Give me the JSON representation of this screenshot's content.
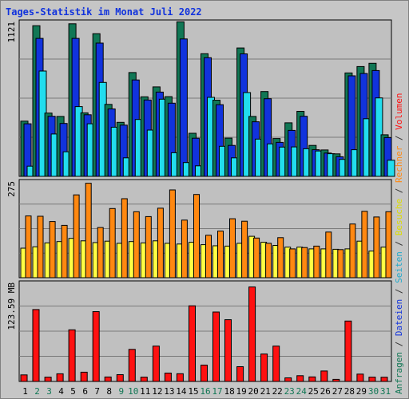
{
  "chart_data": {
    "type": "bar",
    "title": "Tages-Statistik im Monat Juli 2022",
    "categories": [
      "1",
      "2",
      "3",
      "4",
      "5",
      "6",
      "7",
      "8",
      "9",
      "10",
      "11",
      "12",
      "13",
      "14",
      "15",
      "16",
      "17",
      "18",
      "19",
      "20",
      "21",
      "22",
      "23",
      "24",
      "25",
      "26",
      "27",
      "28",
      "29",
      "30",
      "31"
    ],
    "weekend_days": [
      "2",
      "3",
      "9",
      "10",
      "16",
      "17",
      "23",
      "24",
      "30",
      "31"
    ],
    "panels": [
      {
        "name": "top",
        "max_label": "1121",
        "max": 1121,
        "series": [
          {
            "name": "Anfragen",
            "color": "#117755",
            "values": [
              400,
              1091,
              458,
              434,
              1105,
              460,
              1033,
              521,
              391,
              752,
              576,
              648,
              577,
              1119,
              312,
              888,
              552,
              277,
              930,
              434,
              614,
              274,
              388,
              471,
              224,
              191,
              163,
              749,
              795,
              819,
              301
            ]
          },
          {
            "name": "Dateien",
            "color": "#1133dd",
            "values": [
              381,
              999,
              435,
              383,
              999,
              446,
              965,
              488,
              371,
              698,
              553,
              610,
              530,
              995,
              276,
              859,
              519,
              224,
              887,
              395,
              562,
              246,
              333,
              435,
              193,
              169,
              142,
              728,
              745,
              766,
              281
            ]
          },
          {
            "name": "Seiten",
            "color": "#22ddee",
            "values": [
              74,
              763,
              307,
              178,
              505,
              381,
              680,
              356,
              134,
              412,
              335,
              559,
              171,
              100,
              76,
              572,
              218,
              134,
              607,
              270,
              235,
              212,
              213,
              200,
              184,
              164,
              123,
              193,
              417,
              568,
              117
            ]
          }
        ]
      },
      {
        "name": "middle",
        "max_label": "275",
        "max": 275,
        "series": [
          {
            "name": "Besuche",
            "color": "#ffff44",
            "values": [
              84,
              88,
              99,
              103,
              112,
              105,
              100,
              104,
              98,
              103,
              99,
              105,
              98,
              96,
              101,
              94,
              91,
              90,
              98,
              118,
              101,
              92,
              87,
              87,
              82,
              82,
              81,
              82,
              104,
              76,
              87
            ]
          },
          {
            "name": "Rechner",
            "color": "#ff8811",
            "values": [
              176,
              175,
              160,
              149,
              236,
              269,
              143,
              197,
              225,
              188,
              174,
              198,
              250,
              164,
              237,
              121,
              133,
              168,
              161,
              113,
              98,
              114,
              82,
              86,
              90,
              130,
              80,
              153,
              189,
              173,
              188
            ]
          }
        ]
      },
      {
        "name": "bottom",
        "max_label": "123.59 MB",
        "max": 123.59,
        "series": [
          {
            "name": "Volumen",
            "color": "#ff1111",
            "values": [
              8.2,
              89.8,
              5.4,
              9.6,
              64.5,
              11.6,
              87.2,
              5.6,
              8.5,
              40.1,
              5.4,
              44.2,
              10.5,
              9.7,
              94.5,
              20.4,
              86.7,
              77.1,
              18.4,
              118,
              34.3,
              44.2,
              4.5,
              7.2,
              5.7,
              13.1,
              2.6,
              75.4,
              9.2,
              5.4,
              5.3
            ]
          }
        ]
      }
    ],
    "right_legend": [
      {
        "text": "Anfragen",
        "color": "#117755"
      },
      {
        "text": " / ",
        "color": "#333333"
      },
      {
        "text": "Dateien",
        "color": "#1133dd"
      },
      {
        "text": " / ",
        "color": "#333333"
      },
      {
        "text": "Seiten",
        "color": "#22aacc"
      },
      {
        "text": " / ",
        "color": "#333333"
      },
      {
        "text": "Besuche",
        "color": "#dddd00"
      },
      {
        "text": " / ",
        "color": "#333333"
      },
      {
        "text": "Rechner",
        "color": "#ff8811"
      },
      {
        "text": " / ",
        "color": "#333333"
      },
      {
        "text": "Volumen",
        "color": "#ff1111"
      }
    ],
    "colors": {
      "panel_bg": "#c0c0c0",
      "frame_bg": "#c6c6c6",
      "title": "#1133dd",
      "weekday_label": "#000000",
      "weekend_label": "#117755"
    }
  }
}
